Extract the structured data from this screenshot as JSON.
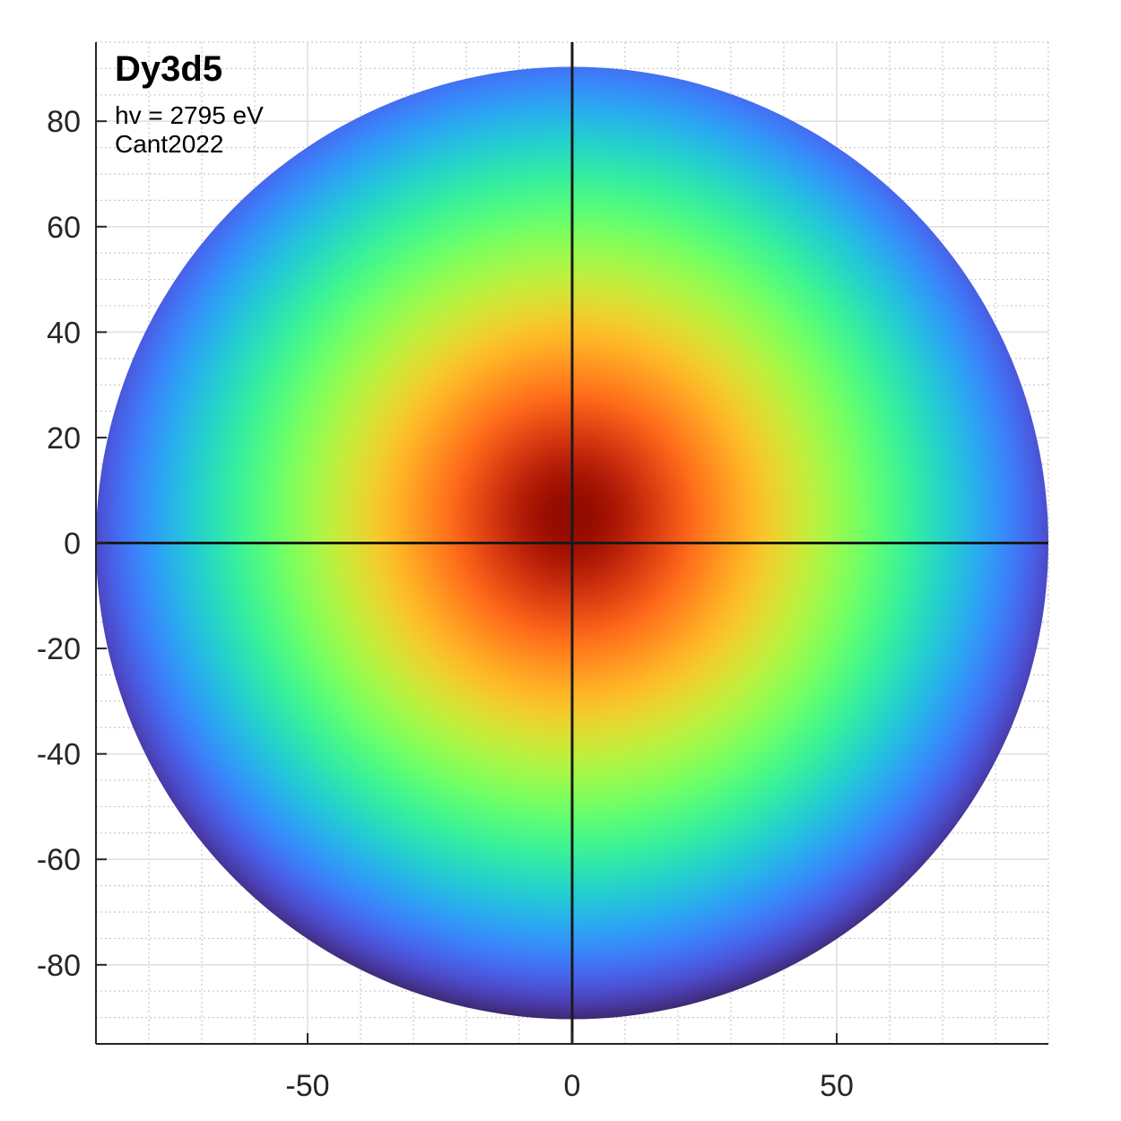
{
  "chart_data": {
    "type": "heatmap",
    "title": "Dy3d5",
    "annotations": [
      "hv = 2795 eV",
      "Cant2022"
    ],
    "xlabel": "",
    "ylabel": "",
    "xlim": [
      -90,
      90
    ],
    "ylim": [
      -95,
      95
    ],
    "x_ticks": [
      -50,
      0,
      50
    ],
    "y_ticks": [
      -80,
      -60,
      -40,
      -20,
      0,
      20,
      40,
      60,
      80
    ],
    "x_tick_labels": [
      "-50",
      "0",
      "50"
    ],
    "y_tick_labels": [
      "-80",
      "-60",
      "-40",
      "-20",
      "0",
      "20",
      "40",
      "60",
      "80"
    ],
    "grid": true,
    "minor_grid": true,
    "colormap": "turbo",
    "disk_radius": 90,
    "intensity_peak": {
      "x": 0,
      "y": 5
    },
    "crosshair": {
      "x": 0,
      "y": 0
    },
    "colors": {
      "crosshair": "#1a1a1a",
      "grid_major": "#e0e0e0",
      "grid_minor": "#c8c8c8",
      "axis": "#262626"
    }
  }
}
